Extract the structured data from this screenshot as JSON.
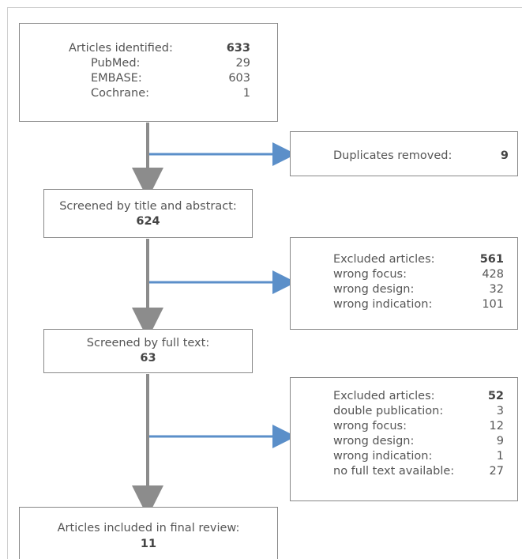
{
  "identified": {
    "label": "Articles identified:",
    "total": "633",
    "sources": [
      {
        "name": "PubMed:",
        "count": "29"
      },
      {
        "name": "EMBASE:",
        "count": "603"
      },
      {
        "name": "Cochrane:",
        "count": "1"
      }
    ]
  },
  "duplicates": {
    "label": "Duplicates removed:",
    "count": "9"
  },
  "screened_title": {
    "label": "Screened by title and abstract:",
    "count": "624"
  },
  "excluded_1": {
    "label": "Excluded articles:",
    "total": "561",
    "reasons": [
      {
        "name": "wrong focus:",
        "count": "428"
      },
      {
        "name": "wrong design:",
        "count": "32"
      },
      {
        "name": "wrong indication:",
        "count": "101"
      }
    ]
  },
  "screened_full": {
    "label": "Screened by full text:",
    "count": "63"
  },
  "excluded_2": {
    "label": "Excluded articles:",
    "total": "52",
    "reasons": [
      {
        "name": "double publication:",
        "count": "3"
      },
      {
        "name": "wrong focus:",
        "count": "12"
      },
      {
        "name": "wrong design:",
        "count": "9"
      },
      {
        "name": "wrong indication:",
        "count": "1"
      },
      {
        "name": "no full text available:",
        "count": "27"
      }
    ]
  },
  "included": {
    "label": "Articles included in final review:",
    "count": "11"
  },
  "colors": {
    "main_arrow": "#8c8c8c",
    "side_arrow": "#5b8fc9",
    "box_border": "#888888"
  }
}
